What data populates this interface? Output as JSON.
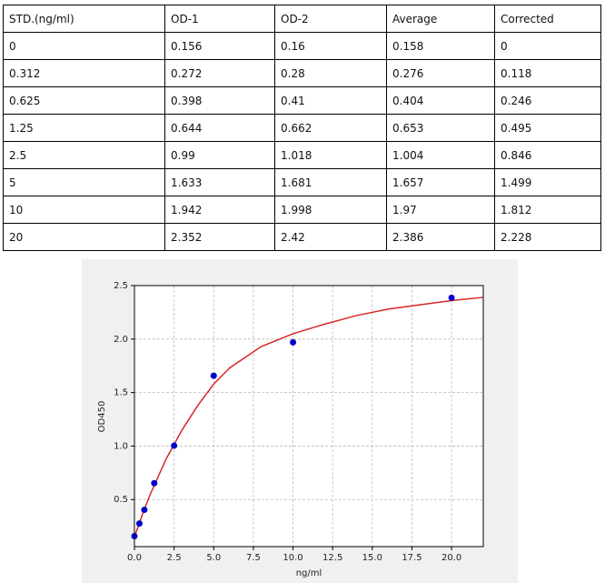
{
  "table": {
    "header": [
      "STD.(ng/ml)",
      "OD-1",
      "OD-2",
      "Average",
      "Corrected"
    ],
    "rows": [
      [
        "0",
        "0.156",
        "0.16",
        "0.158",
        "0"
      ],
      [
        "0.312",
        "0.272",
        "0.28",
        "0.276",
        "0.118"
      ],
      [
        "0.625",
        "0.398",
        "0.41",
        "0.404",
        "0.246"
      ],
      [
        "1.25",
        "0.644",
        "0.662",
        "0.653",
        "0.495"
      ],
      [
        "2.5",
        "0.99",
        "1.018",
        "1.004",
        "0.846"
      ],
      [
        "5",
        "1.633",
        "1.681",
        "1.657",
        "1.499"
      ],
      [
        "10",
        "1.942",
        "1.998",
        "1.97",
        "1.812"
      ],
      [
        "20",
        "2.352",
        "2.42",
        "2.386",
        "2.228"
      ]
    ]
  },
  "chart_data": {
    "type": "scatter",
    "xlabel": "ng/ml",
    "ylabel": "OD450",
    "xlim": [
      0,
      22
    ],
    "ylim": [
      0.06,
      2.5
    ],
    "xticks": [
      {
        "value": 0,
        "label": "0.0"
      },
      2.5,
      {
        "value": 5,
        "label": "5.0"
      },
      7.5,
      {
        "value": 10,
        "label": "10.0"
      },
      12.5,
      {
        "value": 15,
        "label": "15.0"
      },
      17.5,
      {
        "value": 20,
        "label": "20.0"
      }
    ],
    "yticks": [
      0.5,
      {
        "value": 1,
        "label": "1.0"
      },
      1.5,
      {
        "value": 2,
        "label": "2.0"
      },
      2.5
    ],
    "grid": true,
    "series": [
      {
        "type": "scatter",
        "color": "#0000cc",
        "x": [
          0,
          0.312,
          0.625,
          1.25,
          2.5,
          5,
          10,
          20
        ],
        "values": [
          0.158,
          0.276,
          0.404,
          0.653,
          1.004,
          1.657,
          1.97,
          2.386
        ]
      },
      {
        "type": "line",
        "color": "#d62728",
        "x": [
          0,
          0.5,
          1,
          2,
          3,
          4,
          5,
          6,
          8,
          10,
          12,
          14,
          16,
          18,
          20,
          22
        ],
        "values": [
          0.15,
          0.36,
          0.55,
          0.88,
          1.15,
          1.38,
          1.58,
          1.73,
          1.93,
          2.05,
          2.14,
          2.22,
          2.28,
          2.32,
          2.36,
          2.39
        ]
      }
    ]
  }
}
